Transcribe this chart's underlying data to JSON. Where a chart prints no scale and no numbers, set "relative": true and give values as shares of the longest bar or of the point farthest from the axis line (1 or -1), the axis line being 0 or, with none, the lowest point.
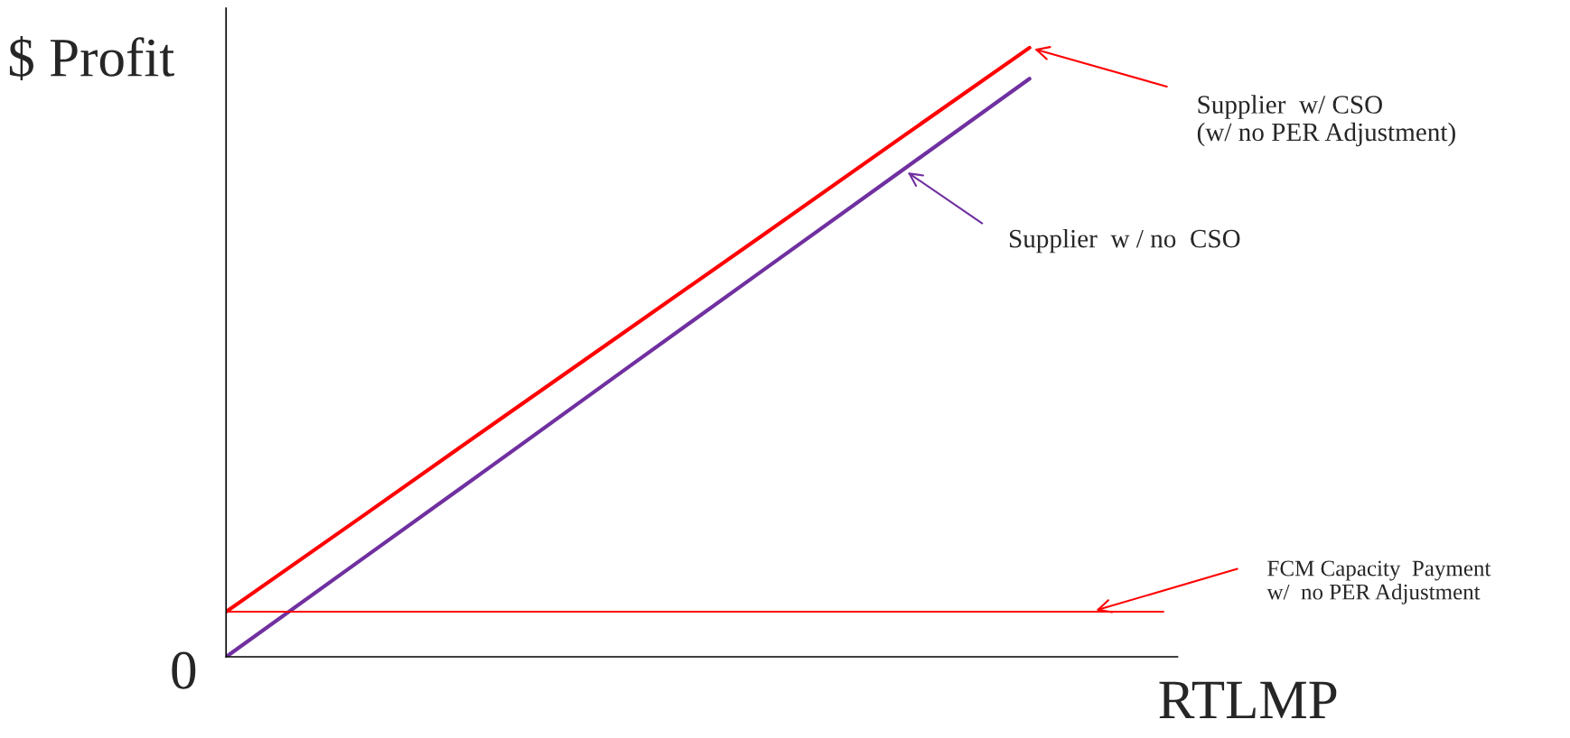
{
  "chart_data": {
    "type": "line",
    "relative": true,
    "xlabel": "RTLMP",
    "ylabel": "$ Profit",
    "marker": "none",
    "line_style": "solid",
    "categories": [
      null,
      null,
      null,
      null,
      null,
      null,
      null,
      null
    ],
    "series": [
      {
        "color": "#ff0000",
        "values": [
          0.074,
          0.228,
          0.383,
          0.537,
          0.691,
          0.846,
          1,
          null
        ]
      },
      {
        "color": "#7030a0",
        "values": [
          0,
          0.158,
          0.316,
          0.475,
          0.633,
          0.791,
          0.949,
          null
        ]
      },
      {
        "color": "#ff0000",
        "values": [
          0.074,
          0.074,
          0.074,
          0.074,
          0.074,
          0.074,
          0.074,
          0.074
        ]
      }
    ],
    "annotations": [
      "Supplier  w/ CSO\n(w/ no PER Adjustment)",
      "Supplier  w / no  CSO",
      "FCM Capacity  Payment\nw/  no PER Adjustment",
      "0"
    ]
  }
}
